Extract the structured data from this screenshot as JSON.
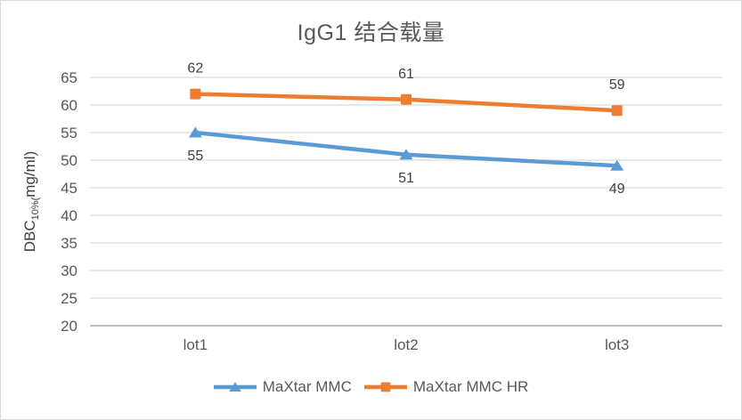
{
  "chart_data": {
    "type": "line",
    "title": "IgG1 结合载量",
    "ylabel_parts": {
      "prefix": "DBC",
      "sub": "10%(",
      "suffix": "mg/ml)"
    },
    "categories": [
      "lot1",
      "lot2",
      "lot3"
    ],
    "series": [
      {
        "name": "MaXtar MMC",
        "color": "#5B9BD5",
        "marker": "triangle",
        "values": [
          55,
          51,
          49
        ],
        "label_position": "below"
      },
      {
        "name": "MaXtar MMC HR",
        "color": "#ED7D31",
        "marker": "square",
        "values": [
          62,
          61,
          59
        ],
        "label_position": "above"
      }
    ],
    "ylim": [
      20,
      65
    ],
    "yticks": [
      20,
      25,
      30,
      35,
      40,
      45,
      50,
      55,
      60,
      65
    ],
    "grid": true,
    "legend_position": "bottom",
    "colors": {
      "gridline": "#D9D9D9",
      "axis_line": "#BFBFBF",
      "tick_label": "#595959",
      "data_label": "#404040",
      "title": "#595959",
      "axis_title": "#404040",
      "background": "#FFFFFF",
      "border": "#D9D9D9"
    }
  }
}
